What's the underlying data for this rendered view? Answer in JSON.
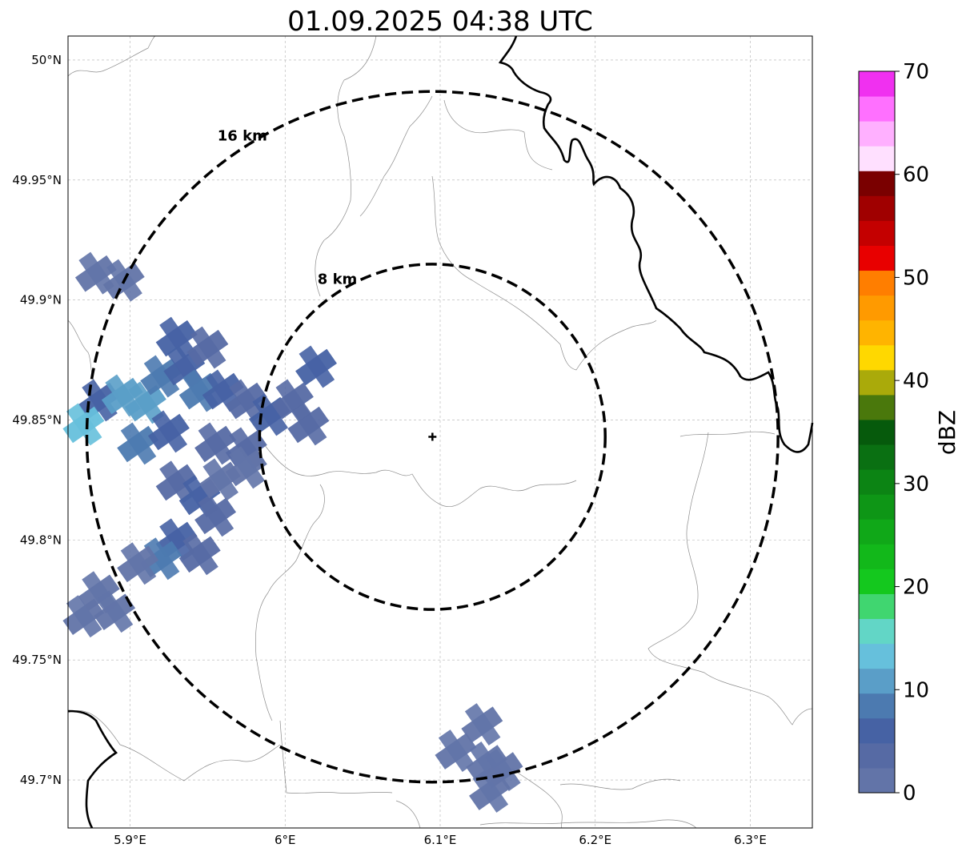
{
  "title": "01.09.2025 04:38 UTC",
  "map": {
    "lon_ticks": [
      {
        "value": 5.9,
        "label": "5.9°E"
      },
      {
        "value": 6.0,
        "label": "6°E"
      },
      {
        "value": 6.1,
        "label": "6.1°E"
      },
      {
        "value": 6.2,
        "label": "6.2°E"
      },
      {
        "value": 6.3,
        "label": "6.3°E"
      }
    ],
    "lat_ticks": [
      {
        "value": 50.0,
        "label": "50°N"
      },
      {
        "value": 49.95,
        "label": "49.95°N"
      },
      {
        "value": 49.9,
        "label": "49.9°N"
      },
      {
        "value": 49.85,
        "label": "49.85°N"
      },
      {
        "value": 49.8,
        "label": "49.8°N"
      },
      {
        "value": 49.75,
        "label": "49.75°N"
      },
      {
        "value": 49.7,
        "label": "49.7°N"
      }
    ],
    "lon_range": [
      5.86,
      6.34
    ],
    "lat_range": [
      49.68,
      50.01
    ],
    "gridlines": true,
    "radar_site": {
      "lon": 6.095,
      "lat": 49.843
    },
    "range_rings": [
      {
        "radius_km": 8,
        "label": "8 km"
      },
      {
        "radius_km": 16,
        "label": "16 km"
      }
    ]
  },
  "colorbar": {
    "label": "dBZ",
    "min": 0,
    "max": 70,
    "ticks": [
      "0",
      "10",
      "20",
      "30",
      "40",
      "50",
      "60",
      "70"
    ],
    "colors": [
      "#6274a8",
      "#566aa4",
      "#4662a4",
      "#4c7ab0",
      "#5a9ec8",
      "#66c0dc",
      "#62d6c6",
      "#40d670",
      "#14c81e",
      "#12b81a",
      "#10a818",
      "#0e9616",
      "#0c8414",
      "#0a7012",
      "#065a0c",
      "#4a780c",
      "#aaaa0a",
      "#ffd800",
      "#ffb400",
      "#ff9a00",
      "#ff7e00",
      "#e80000",
      "#c40000",
      "#a00000",
      "#7a0000",
      "#ffe0ff",
      "#ffb0ff",
      "#ff70ff",
      "#f030f0"
    ]
  },
  "echoes": [
    {
      "lon": 5.878,
      "lat": 49.911,
      "dbz": 2
    },
    {
      "lon": 5.896,
      "lat": 49.908,
      "dbz": 2
    },
    {
      "lon": 5.88,
      "lat": 49.858,
      "dbz": 6
    },
    {
      "lon": 5.87,
      "lat": 49.848,
      "dbz": 14
    },
    {
      "lon": 5.895,
      "lat": 49.86,
      "dbz": 10
    },
    {
      "lon": 5.91,
      "lat": 49.857,
      "dbz": 12
    },
    {
      "lon": 5.92,
      "lat": 49.868,
      "dbz": 8
    },
    {
      "lon": 5.935,
      "lat": 49.872,
      "dbz": 6
    },
    {
      "lon": 5.945,
      "lat": 49.862,
      "dbz": 8
    },
    {
      "lon": 5.96,
      "lat": 49.862,
      "dbz": 6
    },
    {
      "lon": 5.975,
      "lat": 49.858,
      "dbz": 4
    },
    {
      "lon": 5.99,
      "lat": 49.852,
      "dbz": 6
    },
    {
      "lon": 6.005,
      "lat": 49.858,
      "dbz": 4
    },
    {
      "lon": 6.015,
      "lat": 49.848,
      "dbz": 4
    },
    {
      "lon": 6.02,
      "lat": 49.872,
      "dbz": 6
    },
    {
      "lon": 5.93,
      "lat": 49.884,
      "dbz": 6
    },
    {
      "lon": 5.95,
      "lat": 49.88,
      "dbz": 4
    },
    {
      "lon": 5.905,
      "lat": 49.84,
      "dbz": 8
    },
    {
      "lon": 5.925,
      "lat": 49.845,
      "dbz": 6
    },
    {
      "lon": 5.955,
      "lat": 49.84,
      "dbz": 4
    },
    {
      "lon": 5.975,
      "lat": 49.838,
      "dbz": 4
    },
    {
      "lon": 5.93,
      "lat": 49.824,
      "dbz": 4
    },
    {
      "lon": 5.945,
      "lat": 49.818,
      "dbz": 6
    },
    {
      "lon": 5.955,
      "lat": 49.81,
      "dbz": 4
    },
    {
      "lon": 5.93,
      "lat": 49.8,
      "dbz": 6
    },
    {
      "lon": 5.92,
      "lat": 49.792,
      "dbz": 8
    },
    {
      "lon": 5.905,
      "lat": 49.79,
      "dbz": 2
    },
    {
      "lon": 5.945,
      "lat": 49.794,
      "dbz": 4
    },
    {
      "lon": 5.958,
      "lat": 49.825,
      "dbz": 2
    },
    {
      "lon": 5.975,
      "lat": 49.83,
      "dbz": 2
    },
    {
      "lon": 5.88,
      "lat": 49.778,
      "dbz": 2
    },
    {
      "lon": 5.87,
      "lat": 49.768,
      "dbz": 2
    },
    {
      "lon": 5.89,
      "lat": 49.77,
      "dbz": 2
    },
    {
      "lon": 6.127,
      "lat": 49.723,
      "dbz": 2
    },
    {
      "lon": 6.11,
      "lat": 49.712,
      "dbz": 2
    },
    {
      "lon": 6.13,
      "lat": 49.707,
      "dbz": 2
    },
    {
      "lon": 6.14,
      "lat": 49.704,
      "dbz": 2
    },
    {
      "lon": 6.132,
      "lat": 49.695,
      "dbz": 2
    }
  ]
}
